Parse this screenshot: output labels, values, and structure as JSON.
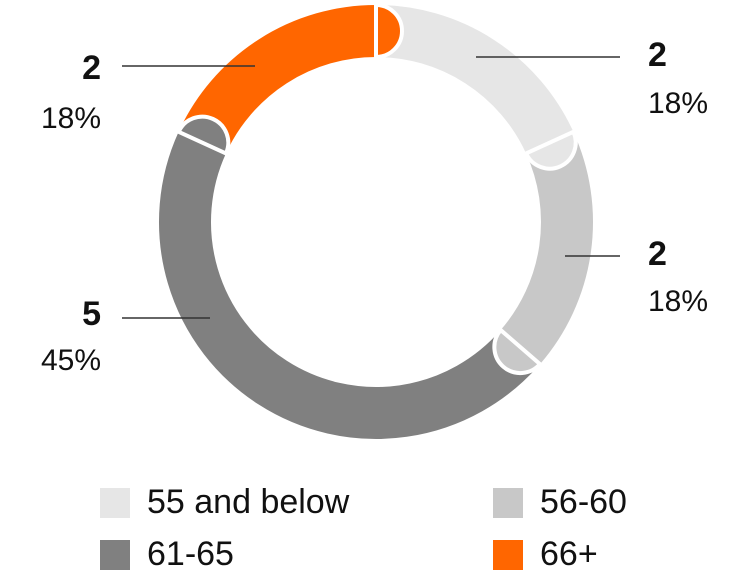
{
  "chart_data": {
    "type": "donut",
    "categories": [
      "55 and below",
      "56-60",
      "61-65",
      "66+"
    ],
    "values": [
      2,
      2,
      5,
      2
    ],
    "shares": [
      18,
      18,
      45,
      18
    ],
    "share_labels": [
      "18%",
      "18%",
      "45%",
      "18%"
    ],
    "colors": [
      "#e6e6e6",
      "#c8c8c8",
      "#808080",
      "#ff6600"
    ]
  }
}
